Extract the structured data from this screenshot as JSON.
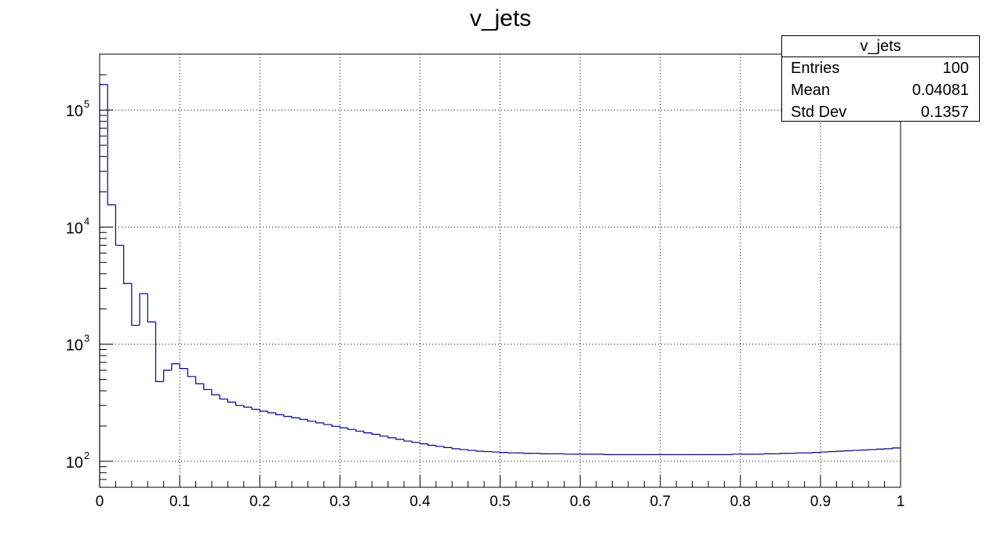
{
  "chart_data": {
    "type": "histogram",
    "title": "v_jets",
    "xlabel": "",
    "ylabel": "",
    "xlim": [
      0,
      1
    ],
    "ylim": [
      60,
      300000
    ],
    "y_scale": "log",
    "grid": true,
    "line_color": "#000080",
    "x_ticks": [
      "0",
      "0.1",
      "0.2",
      "0.3",
      "0.4",
      "0.5",
      "0.6",
      "0.7",
      "0.8",
      "0.9",
      "1"
    ],
    "y_ticks": [
      {
        "value": 100,
        "base": "10",
        "exp": "2"
      },
      {
        "value": 1000,
        "base": "10",
        "exp": "3"
      },
      {
        "value": 10000,
        "base": "10",
        "exp": "4"
      },
      {
        "value": 100000,
        "base": "10",
        "exp": "5"
      }
    ],
    "bin_edges_start": 0,
    "bin_width": 0.01,
    "values": [
      165000,
      15500,
      7000,
      3300,
      1450,
      2700,
      1550,
      480,
      600,
      680,
      620,
      530,
      460,
      410,
      370,
      340,
      320,
      300,
      290,
      278,
      268,
      260,
      250,
      242,
      235,
      228,
      220,
      213,
      206,
      199,
      193,
      187,
      181,
      175,
      170,
      164,
      159,
      154,
      149,
      145,
      141,
      137,
      134,
      131,
      128,
      126,
      124,
      122,
      121,
      120,
      119,
      118,
      118,
      117,
      117,
      116,
      116,
      116,
      115,
      115,
      115,
      115,
      115,
      114,
      114,
      114,
      114,
      114,
      114,
      114,
      114,
      114,
      114,
      114,
      114,
      114,
      114,
      114,
      114,
      115,
      115,
      115,
      115,
      116,
      116,
      117,
      117,
      118,
      118,
      119,
      120,
      121,
      122,
      123,
      124,
      125,
      126,
      127,
      128,
      130
    ]
  },
  "stats": {
    "title": "v_jets",
    "rows": [
      {
        "label": "Entries",
        "value": "100"
      },
      {
        "label": "Mean",
        "value": "0.04081"
      },
      {
        "label": "Std Dev",
        "value": "0.1357"
      }
    ]
  }
}
